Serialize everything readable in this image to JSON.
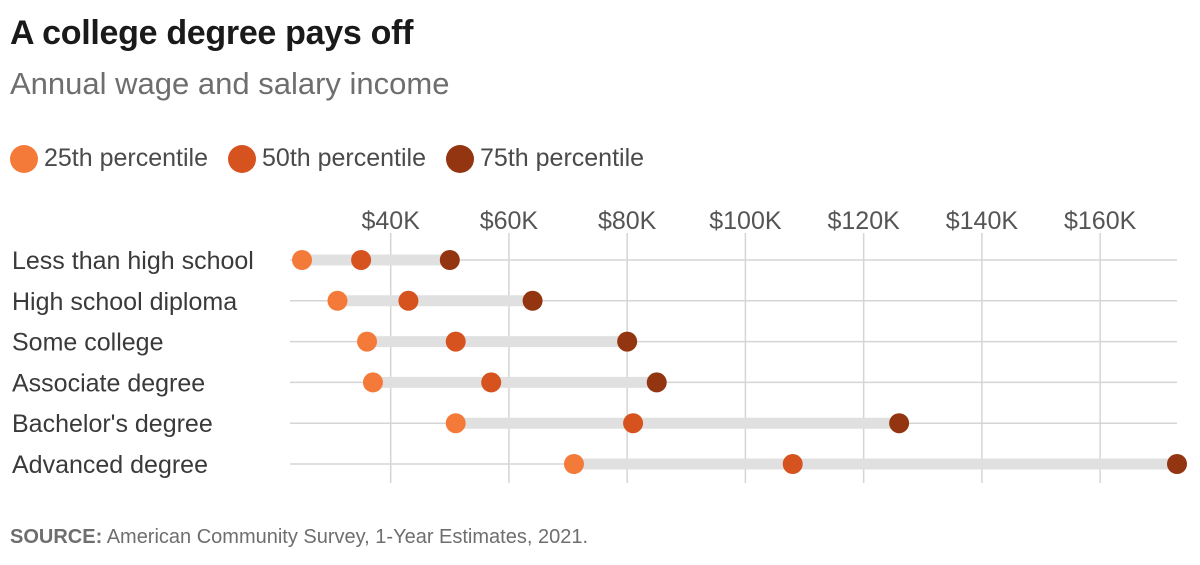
{
  "title": "A college degree pays off",
  "subtitle": "Annual wage and salary income",
  "source": {
    "label": "SOURCE:",
    "text": "American Community Survey, 1-Year Estimates, 2021."
  },
  "chart_data": {
    "type": "dot-range",
    "x_ticks": [
      40000,
      60000,
      80000,
      100000,
      120000,
      140000,
      160000
    ],
    "x_tick_labels": [
      "$40K",
      "$60K",
      "$80K",
      "$100K",
      "$120K",
      "$140K",
      "$160K"
    ],
    "xlim": [
      25000,
      173000
    ],
    "grid": true,
    "legend_position": "top-left",
    "categories": [
      "Less than high school",
      "High school diploma",
      "Some college",
      "Associate degree",
      "Bachelor's degree",
      "Advanced degree"
    ],
    "series": [
      {
        "name": "25th percentile",
        "color": "#f47a3a",
        "values": [
          25000,
          31000,
          36000,
          37000,
          51000,
          71000
        ]
      },
      {
        "name": "50th percentile",
        "color": "#d6531f",
        "values": [
          35000,
          43000,
          51000,
          57000,
          81000,
          108000
        ]
      },
      {
        "name": "75th percentile",
        "color": "#943512",
        "values": [
          50000,
          64000,
          80000,
          85000,
          126000,
          173000
        ]
      }
    ]
  }
}
